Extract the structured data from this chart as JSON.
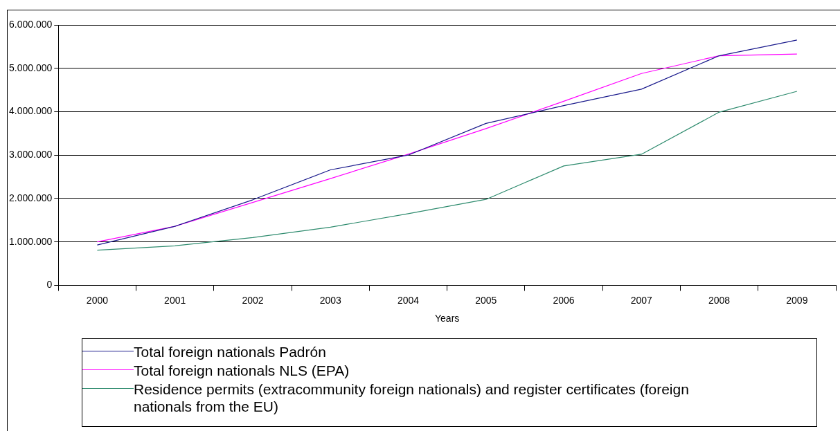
{
  "chart_data": {
    "type": "line",
    "xlabel": "Years",
    "categories": [
      "2000",
      "2001",
      "2002",
      "2003",
      "2004",
      "2005",
      "2006",
      "2007",
      "2008",
      "2009"
    ],
    "series": [
      {
        "name": "Total foreign nationals Padrón",
        "color": "#1a1a8c",
        "values": [
          930000,
          1360000,
          1970000,
          2660000,
          3000000,
          3730000,
          4140000,
          4520000,
          5290000,
          5650000
        ]
      },
      {
        "name": "Total foreign nationals NLS (EPA)",
        "color": "#ff00ff",
        "values": [
          1000000,
          1360000,
          1910000,
          2460000,
          3020000,
          3610000,
          4240000,
          4880000,
          5290000,
          5330000
        ]
      },
      {
        "name": "Residence permits (extracommunity foreign nationals) and register certificates (foreign nationals from the EU)",
        "color": "#2e8b6e",
        "values": [
          810000,
          910000,
          1100000,
          1340000,
          1650000,
          1980000,
          2750000,
          3020000,
          3990000,
          4470000
        ]
      }
    ],
    "ylim": [
      0,
      6000000
    ],
    "yticks": [
      {
        "value": 0,
        "label": "0"
      },
      {
        "value": 1000000,
        "label": "1.000.000"
      },
      {
        "value": 2000000,
        "label": "2.000.000"
      },
      {
        "value": 3000000,
        "label": "3.000.000"
      },
      {
        "value": 4000000,
        "label": "4.000.000"
      },
      {
        "value": 5000000,
        "label": "5.000.000"
      },
      {
        "value": 6000000,
        "label": "6.000.000"
      }
    ],
    "grid": "y",
    "legend": "bottom",
    "marker": "none",
    "line_style": "solid"
  }
}
